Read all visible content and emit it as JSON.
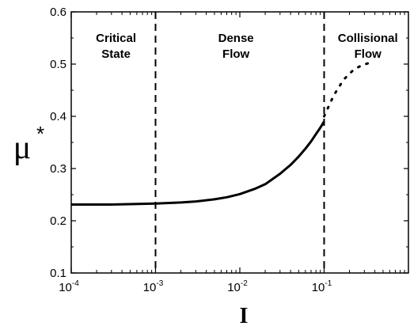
{
  "chart_data": {
    "type": "line",
    "xscale": "log",
    "xlim": [
      0.0001,
      1
    ],
    "ylim": [
      0.1,
      0.6
    ],
    "xlabel": "I",
    "ylabel": "μ",
    "ylabel_superscript": "*",
    "x_ticks": [
      {
        "value": 0.0001,
        "base": "10",
        "exp": "-4"
      },
      {
        "value": 0.001,
        "base": "10",
        "exp": "-3"
      },
      {
        "value": 0.01,
        "base": "10",
        "exp": "-2"
      },
      {
        "value": 0.1,
        "base": "10",
        "exp": "-1"
      }
    ],
    "y_ticks": [
      "0.1",
      "0.2",
      "0.3",
      "0.4",
      "0.5",
      "0.6"
    ],
    "dividers": [
      0.001,
      0.1
    ],
    "regions": [
      {
        "lines": [
          "Critical",
          "State"
        ],
        "x": 0.00034
      },
      {
        "lines": [
          "Dense",
          "Flow"
        ],
        "x": 0.009
      },
      {
        "lines": [
          "Collisional",
          "Flow"
        ],
        "x": 0.33
      }
    ],
    "series": [
      {
        "style": "solid",
        "points": [
          [
            0.0001,
            0.231
          ],
          [
            0.0003,
            0.231
          ],
          [
            0.001,
            0.233
          ],
          [
            0.002,
            0.235
          ],
          [
            0.003,
            0.237
          ],
          [
            0.005,
            0.241
          ],
          [
            0.007,
            0.245
          ],
          [
            0.01,
            0.251
          ],
          [
            0.015,
            0.261
          ],
          [
            0.02,
            0.27
          ],
          [
            0.03,
            0.29
          ],
          [
            0.04,
            0.307
          ],
          [
            0.05,
            0.323
          ],
          [
            0.06,
            0.338
          ],
          [
            0.07,
            0.352
          ],
          [
            0.08,
            0.366
          ],
          [
            0.09,
            0.378
          ],
          [
            0.1,
            0.39
          ]
        ]
      },
      {
        "style": "dotted",
        "points": [
          [
            0.1,
            0.4
          ],
          [
            0.13,
            0.44
          ],
          [
            0.17,
            0.47
          ],
          [
            0.22,
            0.488
          ],
          [
            0.28,
            0.498
          ],
          [
            0.36,
            0.503
          ]
        ]
      }
    ]
  }
}
